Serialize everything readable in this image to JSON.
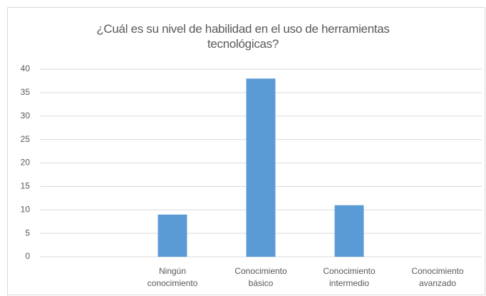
{
  "chart_data": {
    "type": "bar",
    "title": "¿Cuál es su nivel de habilidad en el uso de herramientas tecnológicas?",
    "categories": [
      null,
      "Ningún conocimiento",
      "Conocimiento básico",
      "Conocimiento intermedio",
      "Conocimiento avanzado"
    ],
    "values": [
      0,
      9,
      38,
      11,
      0
    ],
    "color": "#5b9bd5",
    "ylim": [
      0,
      40
    ],
    "yticks": [
      0,
      5,
      10,
      15,
      20,
      25,
      30,
      35,
      40
    ],
    "grid": true
  }
}
